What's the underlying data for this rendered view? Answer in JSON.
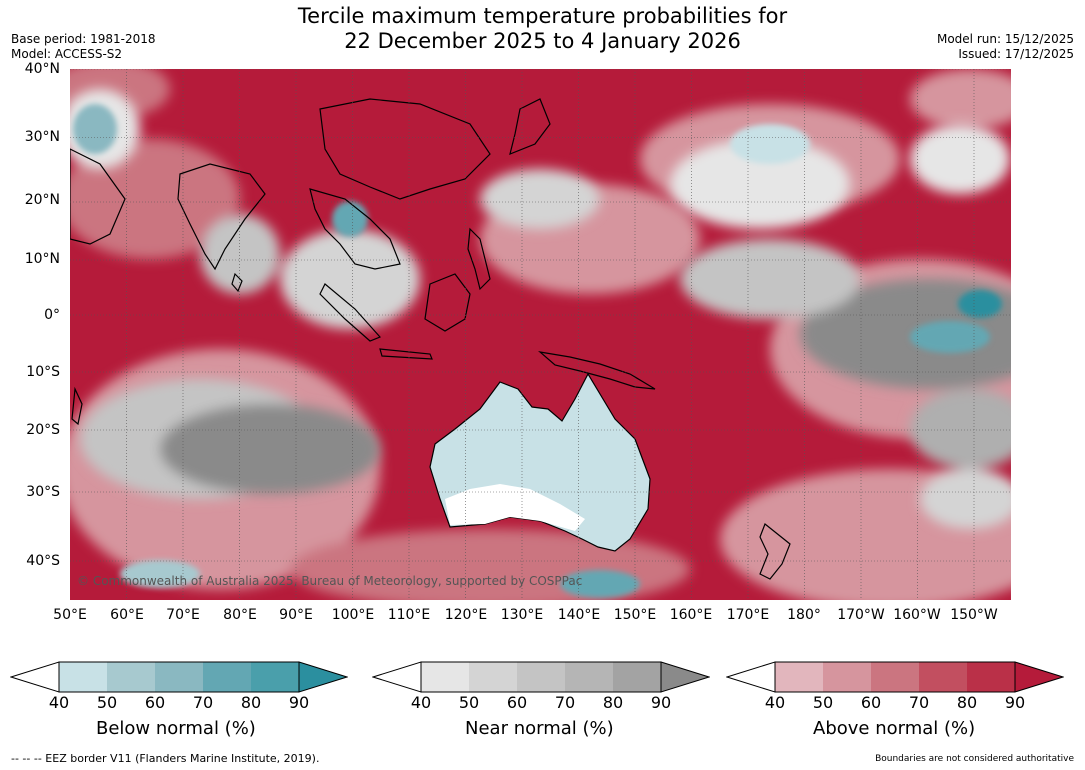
{
  "header": {
    "title_line1": "Tercile maximum temperature probabilities for",
    "title_line2": "22 December 2025 to 4 January 2026",
    "base_period": "Base period: 1981-2018",
    "model": "Model: ACCESS-S2",
    "model_run": "Model run: 15/12/2025",
    "issued": "Issued: 17/12/2025"
  },
  "map": {
    "lat_labels": [
      "40°N",
      "30°N",
      "20°N",
      "10°N",
      "0°",
      "10°S",
      "20°S",
      "30°S",
      "40°S"
    ],
    "lon_labels": [
      "50°E",
      "60°E",
      "70°E",
      "80°E",
      "90°E",
      "100°E",
      "110°E",
      "120°E",
      "130°E",
      "140°E",
      "150°E",
      "160°E",
      "170°E",
      "180°",
      "170°W",
      "160°W",
      "150°W"
    ],
    "copyright": "© Commonwealth of Australia 2025, Bureau of Meteorology, supported by COSPPac",
    "colors": {
      "above": [
        "#ffffff",
        "#e2b6bd",
        "#d6959e",
        "#cb7580",
        "#c24f60",
        "#b51b3a"
      ],
      "near": [
        "#ffffff",
        "#e6e6e6",
        "#d4d4d4",
        "#c4c4c4",
        "#afafaf",
        "#8a8a8a"
      ],
      "below": [
        "#ffffff",
        "#c8e1e6",
        "#a7c9cf",
        "#8ab8c1",
        "#63a7b3",
        "#2b8f9f"
      ]
    }
  },
  "legend": {
    "ticks": [
      "40",
      "50",
      "60",
      "70",
      "80",
      "90"
    ],
    "below_label": "Below normal (%)",
    "near_label": "Near normal (%)",
    "above_label": "Above normal (%)"
  },
  "footer": {
    "eez": "--  --  -- EEZ border V11 (Flanders Marine Institute, 2019).",
    "disclaimer": "Boundaries are not considered authoritative"
  }
}
